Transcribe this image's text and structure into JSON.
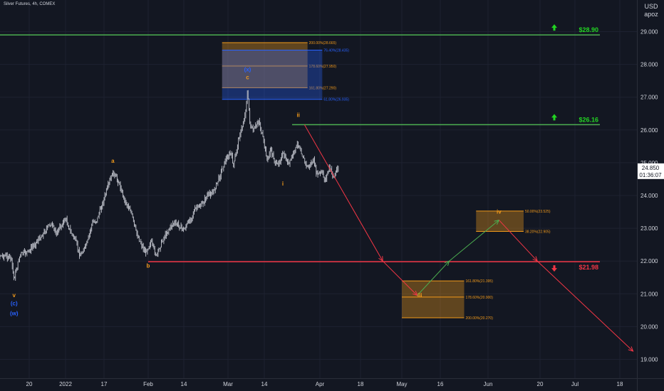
{
  "header": {
    "title": "Silver Futures, 4h, COMEX",
    "currency": "USD",
    "author": "apoz"
  },
  "colors": {
    "background": "#131722",
    "grid": "#1e2230",
    "text": "#d1d4dc",
    "green": "#4caf50",
    "green_label": "#22d422",
    "red": "#f23645",
    "orange": "#f29a1a",
    "blue": "#2962ff",
    "price_tag_bg": "#ffffff"
  },
  "chart_data": {
    "type": "candlestick",
    "title": "Silver Futures, 4h, COMEX",
    "y_axis": {
      "position": "right",
      "range": [
        18.8,
        30.0
      ],
      "ticks": [
        "29.000",
        "28.000",
        "27.000",
        "26.000",
        "25.000",
        "24.000",
        "23.000",
        "22.000",
        "21.000",
        "20.000",
        "19.000"
      ]
    },
    "x_axis": {
      "ticks": [
        "20",
        "2022",
        "17",
        "Feb",
        "14",
        "Mar",
        "14",
        "Apr",
        "18",
        "May",
        "16",
        "Jun",
        "20",
        "Jul",
        "18"
      ]
    },
    "price_path": [
      [
        "2021-12-06",
        22.45
      ],
      [
        "2021-12-09",
        22.2
      ],
      [
        "2021-12-12",
        22.15
      ],
      [
        "2021-12-14",
        22.1
      ],
      [
        "2021-12-15",
        21.45
      ],
      [
        "2021-12-17",
        22.2
      ],
      [
        "2021-12-20",
        22.3
      ],
      [
        "2021-12-22",
        22.55
      ],
      [
        "2021-12-24",
        22.75
      ],
      [
        "2021-12-27",
        23.15
      ],
      [
        "2021-12-29",
        22.85
      ],
      [
        "2022-01-01",
        23.3
      ],
      [
        "2022-01-03",
        22.9
      ],
      [
        "2022-01-05",
        22.65
      ],
      [
        "2022-01-07",
        22.15
      ],
      [
        "2022-01-10",
        22.55
      ],
      [
        "2022-01-12",
        23.15
      ],
      [
        "2022-01-14",
        23.25
      ],
      [
        "2022-01-17",
        23.9
      ],
      [
        "2022-01-19",
        24.45
      ],
      [
        "2022-01-20",
        24.7
      ],
      [
        "2022-01-22",
        24.4
      ],
      [
        "2022-01-24",
        23.85
      ],
      [
        "2022-01-26",
        23.55
      ],
      [
        "2022-01-28",
        22.85
      ],
      [
        "2022-01-30",
        22.45
      ],
      [
        "2022-01-31",
        22.25
      ],
      [
        "2022-02-02",
        22.6
      ],
      [
        "2022-02-04",
        22.15
      ],
      [
        "2022-02-06",
        22.6
      ],
      [
        "2022-02-08",
        22.9
      ],
      [
        "2022-02-10",
        23.15
      ],
      [
        "2022-02-12",
        23.1
      ],
      [
        "2022-02-14",
        22.95
      ],
      [
        "2022-02-16",
        23.25
      ],
      [
        "2022-02-18",
        23.6
      ],
      [
        "2022-02-20",
        23.7
      ],
      [
        "2022-02-22",
        24.0
      ],
      [
        "2022-02-24",
        24.1
      ],
      [
        "2022-02-26",
        24.55
      ],
      [
        "2022-02-28",
        25.05
      ],
      [
        "2022-03-02",
        25.3
      ],
      [
        "2022-03-03",
        24.9
      ],
      [
        "2022-03-05",
        25.8
      ],
      [
        "2022-03-06",
        26.05
      ],
      [
        "2022-03-07",
        26.4
      ],
      [
        "2022-03-08",
        27.15
      ],
      [
        "2022-03-09",
        26.1
      ],
      [
        "2022-03-10",
        25.95
      ],
      [
        "2022-03-12",
        26.3
      ],
      [
        "2022-03-14",
        25.55
      ],
      [
        "2022-03-15",
        25.05
      ],
      [
        "2022-03-16",
        25.4
      ],
      [
        "2022-03-18",
        24.9
      ],
      [
        "2022-03-20",
        25.25
      ],
      [
        "2022-03-22",
        24.95
      ],
      [
        "2022-03-23",
        25.2
      ],
      [
        "2022-03-25",
        25.6
      ],
      [
        "2022-03-27",
        25.05
      ],
      [
        "2022-03-28",
        24.85
      ],
      [
        "2022-03-30",
        25.05
      ],
      [
        "2022-03-31",
        24.65
      ],
      [
        "2022-04-02",
        24.7
      ],
      [
        "2022-04-03",
        24.45
      ],
      [
        "2022-04-05",
        24.85
      ],
      [
        "2022-04-07",
        24.55
      ],
      [
        "2022-04-08",
        24.8
      ],
      [
        "2022-04-09",
        24.85
      ]
    ],
    "horizontal_levels": [
      {
        "price": 28.9,
        "label": "$28.90",
        "color": "green",
        "direction": "up"
      },
      {
        "price": 26.16,
        "label": "$26.16",
        "color": "green",
        "direction": "up"
      },
      {
        "price": 21.98,
        "label": "$21.98",
        "color": "red",
        "direction": "down"
      }
    ],
    "current_price": {
      "price": 24.85,
      "label": "24.850",
      "countdown": "01:36:07"
    },
    "fib_zones": [
      {
        "name": "wave-c-target",
        "from": "2022-02-27",
        "to": "2022-03-28",
        "top": 28.665,
        "bottom": 27.29,
        "color": "orange",
        "lines": [
          {
            "price": 28.665,
            "label": "200.00%(28.665)"
          },
          {
            "price": 27.95,
            "label": "178.60%(27.950)"
          },
          {
            "price": 27.29,
            "label": "161.80%(27.290)"
          }
        ]
      },
      {
        "name": "wave-c-blue-extension",
        "from": "2022-02-27",
        "to": "2022-04-02",
        "top": 28.435,
        "bottom": 26.935,
        "color": "blue",
        "lines": [
          {
            "price": 28.435,
            "label": "76.40%(28.435)"
          },
          {
            "price": 26.935,
            "label": "61.80%(26.935)"
          }
        ]
      },
      {
        "name": "wave-iii-target",
        "from": "2022-05-01",
        "to": "2022-05-24",
        "top": 21.395,
        "bottom": 20.27,
        "color": "orange",
        "lines": [
          {
            "price": 21.395,
            "label": "161.80%(21.395)"
          },
          {
            "price": 20.9,
            "label": "178.60%(20.900)"
          },
          {
            "price": 20.27,
            "label": "200.00%(20.270)"
          }
        ]
      },
      {
        "name": "wave-iv-target",
        "from": "2022-05-28",
        "to": "2022-06-14",
        "top": 23.525,
        "bottom": 22.905,
        "color": "orange",
        "lines": [
          {
            "price": 23.525,
            "label": "50.00%(23.525)"
          },
          {
            "price": 22.905,
            "label": "38.20%(22.905)"
          }
        ]
      }
    ],
    "projection_path": [
      {
        "from": [
          "2022-03-27",
          26.16
        ],
        "to": [
          "2022-04-25",
          22.0
        ],
        "color": "red"
      },
      {
        "from": [
          "2022-04-25",
          22.0
        ],
        "to": [
          "2022-05-07",
          20.95
        ],
        "color": "red"
      },
      {
        "from": [
          "2022-05-07",
          20.95
        ],
        "to": [
          "2022-05-19",
          22.0
        ],
        "color": "green"
      },
      {
        "from": [
          "2022-05-19",
          22.0
        ],
        "to": [
          "2022-06-05",
          23.25
        ],
        "color": "green"
      },
      {
        "from": [
          "2022-06-05",
          23.25
        ],
        "to": [
          "2022-06-19",
          22.0
        ],
        "color": "red"
      },
      {
        "from": [
          "2022-06-19",
          22.0
        ],
        "to": [
          "2022-07-23",
          19.25
        ],
        "color": "red"
      }
    ],
    "wave_labels": [
      {
        "text": "v",
        "date": "2021-12-15",
        "price": 20.9,
        "color": "orange"
      },
      {
        "text": "(c)",
        "date": "2021-12-15",
        "price": 20.65,
        "color": "blue"
      },
      {
        "text": "(w)",
        "date": "2021-12-15",
        "price": 20.35,
        "color": "blue"
      },
      {
        "text": "a",
        "date": "2022-01-20",
        "price": 25.0,
        "color": "orange"
      },
      {
        "text": "b",
        "date": "2022-02-01",
        "price": 21.8,
        "color": "orange"
      },
      {
        "text": "(x)",
        "date": "2022-03-08",
        "price": 27.78,
        "color": "blue"
      },
      {
        "text": "c",
        "date": "2022-03-08",
        "price": 27.55,
        "color": "orange"
      },
      {
        "text": "i",
        "date": "2022-03-20",
        "price": 24.3,
        "color": "orange"
      },
      {
        "text": "ii",
        "date": "2022-03-25",
        "price": 26.4,
        "color": "orange"
      },
      {
        "text": "iii",
        "date": "2022-05-08",
        "price": 20.9,
        "color": "orange"
      },
      {
        "text": "iv",
        "date": "2022-06-05",
        "price": 23.45,
        "color": "orange"
      }
    ]
  }
}
